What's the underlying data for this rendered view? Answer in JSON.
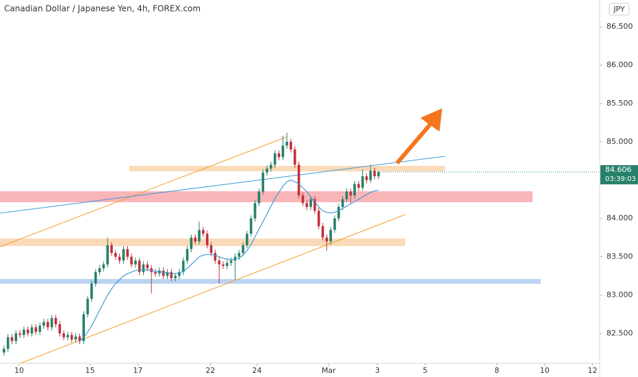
{
  "chart_data": {
    "type": "candlestick",
    "title": "Canadian Dollar / Japanese Yen, 4h, FOREX.com",
    "currency": "JPY",
    "last_price": 84.606,
    "countdown": "03:39:03",
    "up_color": "#26806a",
    "down_color": "#c2303a",
    "ma_color": "#3d9ad6",
    "ylim": [
      82.11,
      86.85
    ],
    "yticks": [
      {
        "value": 82.5,
        "label": "82.500"
      },
      {
        "value": 83,
        "label": "83.000"
      },
      {
        "value": 83.5,
        "label": "83.500"
      },
      {
        "value": 84,
        "label": "84.000"
      },
      {
        "value": 84.5,
        "label": "84.500"
      },
      {
        "value": 85,
        "label": "85.000"
      },
      {
        "value": 85.5,
        "label": "85.500"
      },
      {
        "value": 86,
        "label": "86.000"
      },
      {
        "value": 86.5,
        "label": "86.500"
      }
    ],
    "xlim": [
      -1,
      149.5
    ],
    "xticks": [
      {
        "value": 3.8,
        "label": "10"
      },
      {
        "value": 21.6,
        "label": "15"
      },
      {
        "value": 33.6,
        "label": "17"
      },
      {
        "value": 51.8,
        "label": "22"
      },
      {
        "value": 63.5,
        "label": "24"
      },
      {
        "value": 81.5,
        "label": "Mar"
      },
      {
        "value": 93.7,
        "label": "3"
      },
      {
        "value": 105.7,
        "label": "5"
      },
      {
        "value": 123.7,
        "label": "8"
      },
      {
        "value": 135.7,
        "label": "10"
      },
      {
        "value": 147.7,
        "label": "12"
      }
    ],
    "ohlc": [
      [
        82.25,
        82.34,
        82.21,
        82.3
      ],
      [
        82.3,
        82.49,
        82.26,
        82.45
      ],
      [
        82.45,
        82.49,
        82.36,
        82.4
      ],
      [
        82.4,
        82.54,
        82.36,
        82.5
      ],
      [
        82.5,
        82.54,
        82.44,
        82.48
      ],
      [
        82.48,
        82.59,
        82.44,
        82.55
      ],
      [
        82.55,
        82.59,
        82.46,
        82.5
      ],
      [
        82.5,
        82.62,
        82.46,
        82.58
      ],
      [
        82.58,
        82.62,
        82.48,
        82.52
      ],
      [
        82.52,
        82.64,
        82.48,
        82.6
      ],
      [
        82.6,
        82.69,
        82.56,
        82.65
      ],
      [
        82.65,
        82.69,
        82.54,
        82.58
      ],
      [
        82.58,
        82.74,
        82.54,
        82.7
      ],
      [
        82.7,
        82.74,
        82.58,
        82.62
      ],
      [
        82.62,
        82.66,
        82.46,
        82.5
      ],
      [
        82.5,
        82.54,
        82.41,
        82.45
      ],
      [
        82.45,
        82.52,
        82.41,
        82.48
      ],
      [
        82.48,
        82.52,
        82.38,
        82.42
      ],
      [
        82.42,
        82.5,
        82.38,
        82.46
      ],
      [
        82.46,
        82.5,
        82.36,
        82.4
      ],
      [
        82.4,
        82.79,
        82.36,
        82.75
      ],
      [
        82.75,
        82.99,
        82.71,
        82.95
      ],
      [
        82.95,
        83.19,
        82.91,
        83.15
      ],
      [
        83.15,
        83.34,
        83.11,
        83.3
      ],
      [
        83.3,
        83.39,
        83.26,
        83.35
      ],
      [
        83.35,
        83.44,
        83.31,
        83.4
      ],
      [
        83.4,
        83.75,
        83.36,
        83.65
      ],
      [
        83.65,
        83.69,
        83.51,
        83.55
      ],
      [
        83.55,
        83.59,
        83.46,
        83.5
      ],
      [
        83.5,
        83.54,
        83.41,
        83.45
      ],
      [
        83.45,
        83.64,
        83.41,
        83.6
      ],
      [
        83.6,
        83.64,
        83.46,
        83.5
      ],
      [
        83.5,
        83.54,
        83.36,
        83.4
      ],
      [
        83.4,
        83.49,
        83.36,
        83.45
      ],
      [
        83.45,
        83.49,
        83.26,
        83.3
      ],
      [
        83.3,
        83.44,
        83.26,
        83.4
      ],
      [
        83.4,
        83.44,
        83.31,
        83.35
      ],
      [
        83.35,
        83.39,
        83.02,
        83.3
      ],
      [
        83.3,
        83.34,
        83.24,
        83.28
      ],
      [
        83.28,
        83.36,
        83.24,
        83.32
      ],
      [
        83.32,
        83.36,
        83.21,
        83.25
      ],
      [
        83.25,
        83.34,
        83.21,
        83.3
      ],
      [
        83.3,
        83.34,
        83.18,
        83.22
      ],
      [
        83.22,
        83.29,
        83.18,
        83.25
      ],
      [
        83.25,
        83.34,
        83.21,
        83.3
      ],
      [
        83.3,
        83.49,
        83.26,
        83.45
      ],
      [
        83.45,
        83.64,
        83.41,
        83.6
      ],
      [
        83.6,
        83.79,
        83.56,
        83.75
      ],
      [
        83.75,
        83.79,
        83.66,
        83.7
      ],
      [
        83.7,
        83.96,
        83.66,
        83.85
      ],
      [
        83.85,
        83.89,
        83.76,
        83.8
      ],
      [
        83.8,
        83.84,
        83.61,
        83.65
      ],
      [
        83.65,
        83.69,
        83.51,
        83.55
      ],
      [
        83.55,
        83.59,
        83.41,
        83.45
      ],
      [
        83.45,
        83.49,
        83.15,
        83.4
      ],
      [
        83.4,
        83.44,
        83.34,
        83.38
      ],
      [
        83.38,
        83.46,
        83.34,
        83.42
      ],
      [
        83.42,
        83.49,
        83.38,
        83.45
      ],
      [
        83.45,
        83.54,
        83.2,
        83.5
      ],
      [
        83.5,
        83.59,
        83.46,
        83.55
      ],
      [
        83.55,
        83.69,
        83.51,
        83.65
      ],
      [
        83.65,
        83.84,
        83.61,
        83.8
      ],
      [
        83.8,
        84.04,
        83.76,
        84.0
      ],
      [
        84.0,
        84.24,
        83.96,
        84.2
      ],
      [
        84.2,
        84.39,
        84.16,
        84.35
      ],
      [
        84.35,
        84.64,
        84.31,
        84.6
      ],
      [
        84.6,
        84.69,
        84.56,
        84.65
      ],
      [
        84.65,
        84.74,
        84.61,
        84.7
      ],
      [
        84.7,
        84.89,
        84.66,
        84.85
      ],
      [
        84.85,
        84.89,
        84.76,
        84.8
      ],
      [
        84.8,
        85.08,
        84.76,
        84.95
      ],
      [
        84.95,
        85.12,
        84.91,
        85.0
      ],
      [
        85.0,
        85.04,
        84.86,
        84.9
      ],
      [
        84.9,
        84.94,
        84.66,
        84.7
      ],
      [
        84.7,
        84.74,
        84.26,
        84.3
      ],
      [
        84.3,
        84.34,
        84.16,
        84.2
      ],
      [
        84.2,
        84.24,
        84.11,
        84.15
      ],
      [
        84.15,
        84.29,
        84.11,
        84.25
      ],
      [
        84.25,
        84.29,
        84.06,
        84.1
      ],
      [
        84.1,
        84.14,
        83.86,
        83.9
      ],
      [
        83.9,
        83.94,
        83.71,
        83.75
      ],
      [
        83.75,
        83.79,
        83.58,
        83.7
      ],
      [
        83.7,
        83.89,
        83.66,
        83.85
      ],
      [
        83.85,
        84.04,
        83.81,
        84.0
      ],
      [
        84.0,
        84.19,
        83.96,
        84.15
      ],
      [
        84.15,
        84.29,
        84.11,
        84.25
      ],
      [
        84.25,
        84.39,
        84.21,
        84.35
      ],
      [
        84.35,
        84.39,
        84.2,
        84.3
      ],
      [
        84.3,
        84.49,
        84.26,
        84.45
      ],
      [
        84.45,
        84.49,
        84.36,
        84.4
      ],
      [
        84.4,
        84.64,
        84.36,
        84.55
      ],
      [
        84.55,
        84.59,
        84.46,
        84.5
      ],
      [
        84.5,
        84.7,
        84.46,
        84.62
      ],
      [
        84.62,
        84.66,
        84.51,
        84.55
      ],
      [
        84.55,
        84.62,
        84.51,
        84.606
      ]
    ],
    "ma": [
      null,
      null,
      null,
      null,
      null,
      null,
      null,
      null,
      null,
      null,
      null,
      null,
      null,
      null,
      null,
      null,
      null,
      null,
      null,
      82.4,
      82.45,
      82.52,
      82.6,
      82.7,
      82.8,
      82.9,
      83.0,
      83.08,
      83.15,
      83.2,
      83.25,
      83.28,
      83.3,
      83.32,
      83.33,
      83.33,
      83.33,
      83.32,
      83.31,
      83.3,
      83.3,
      83.29,
      83.28,
      83.28,
      83.29,
      83.31,
      83.35,
      83.4,
      83.45,
      83.5,
      83.52,
      83.53,
      83.53,
      83.52,
      83.5,
      83.48,
      83.47,
      83.46,
      83.47,
      83.48,
      83.52,
      83.58,
      83.66,
      83.76,
      83.86,
      83.96,
      84.06,
      84.16,
      84.26,
      84.34,
      84.42,
      84.48,
      84.5,
      84.48,
      84.45,
      84.4,
      84.35,
      84.28,
      84.22,
      84.15,
      84.1,
      84.08,
      84.07,
      84.08,
      84.1,
      84.13,
      84.16,
      84.19,
      84.22,
      84.25,
      84.28,
      84.31,
      84.34,
      84.36,
      84.37
    ]
  }
}
